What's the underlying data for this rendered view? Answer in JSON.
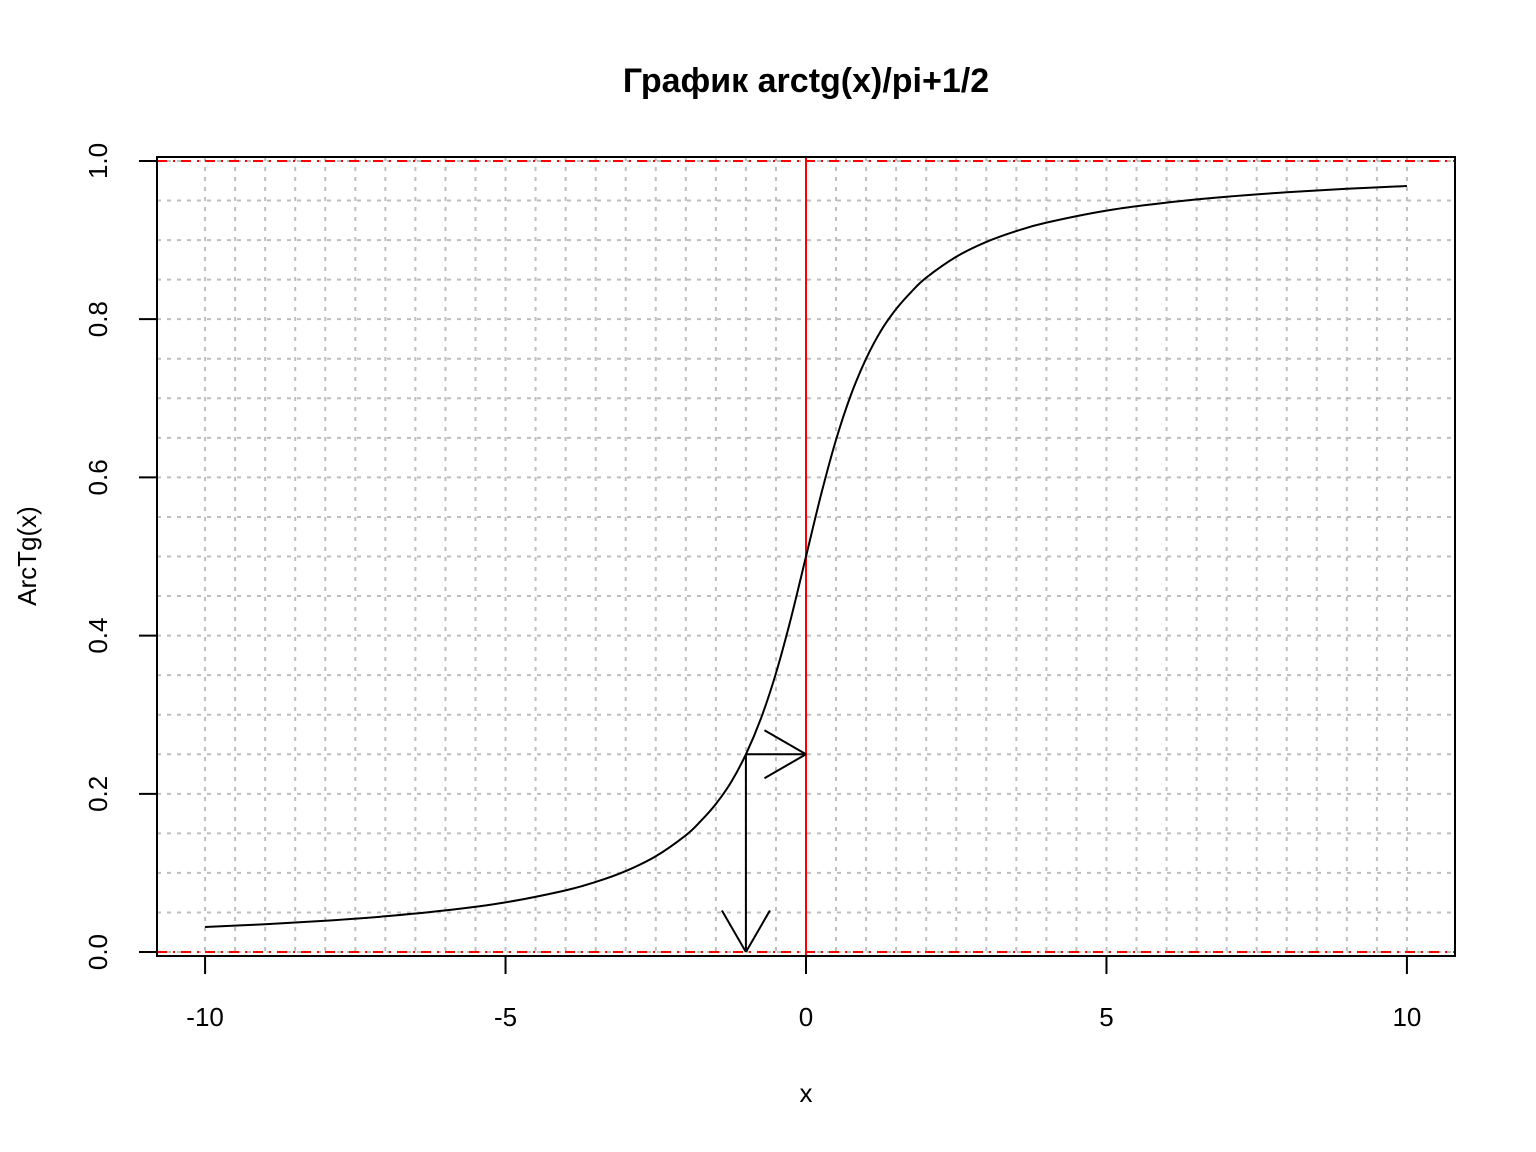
{
  "chart_data": {
    "type": "line",
    "title": "График arctg(x)/pi+1/2",
    "xlabel": "x",
    "ylabel": "ArcTg(x)",
    "xlim": [
      -10.8,
      10.8
    ],
    "ylim": [
      -0.005,
      1.005
    ],
    "x_ticks": [
      -10,
      -5,
      0,
      5,
      10
    ],
    "x_tick_labels": [
      "-10",
      "-5",
      "0",
      "5",
      "10"
    ],
    "y_ticks": [
      0.0,
      0.2,
      0.4,
      0.6,
      0.8,
      1.0
    ],
    "y_tick_labels": [
      "0.0",
      "0.2",
      "0.4",
      "0.6",
      "0.8",
      "1.0"
    ],
    "grid": true,
    "grid_x_step": 0.5,
    "grid_y_step": 0.05,
    "grid_color": "#bebebe",
    "series": [
      {
        "color": "#000000",
        "x": [
          -10,
          -9,
          -8,
          -7,
          -6,
          -5,
          -4,
          -3.5,
          -3,
          -2.5,
          -2,
          -1.75,
          -1.5,
          -1.25,
          -1,
          -0.75,
          -0.5,
          -0.25,
          0,
          0.25,
          0.5,
          0.75,
          1,
          1.25,
          1.5,
          1.75,
          2,
          2.5,
          3,
          3.5,
          4,
          5,
          6,
          7,
          8,
          9,
          10
        ],
        "y": [
          0.0317,
          0.0352,
          0.0396,
          0.0452,
          0.0526,
          0.0628,
          0.078,
          0.0886,
          0.1024,
          0.1211,
          0.1476,
          0.1657,
          0.1872,
          0.2143,
          0.25,
          0.2952,
          0.3524,
          0.422,
          0.5,
          0.578,
          0.6476,
          0.7048,
          0.75,
          0.7857,
          0.8128,
          0.8343,
          0.8524,
          0.8789,
          0.8976,
          0.9114,
          0.922,
          0.9372,
          0.9474,
          0.9548,
          0.9604,
          0.9648,
          0.9683
        ]
      }
    ],
    "reference_lines": {
      "color": "#ff0000",
      "horizontal": [
        0,
        1
      ],
      "vertical": [
        0
      ]
    },
    "annotation_arrows": [
      {
        "from": [
          -1,
          0.25
        ],
        "to": [
          -1,
          0
        ]
      },
      {
        "from": [
          -1,
          0.25
        ],
        "to": [
          0,
          0.25
        ]
      }
    ]
  }
}
